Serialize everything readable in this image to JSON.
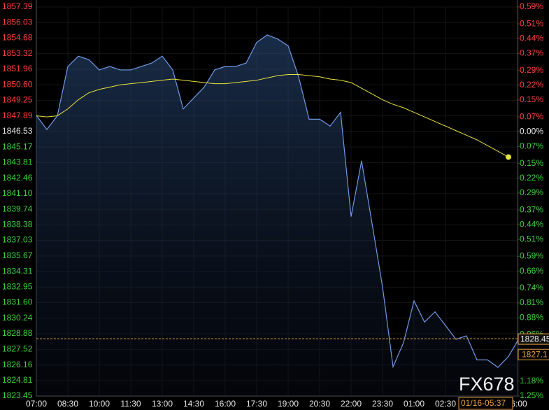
{
  "chart_data": {
    "type": "line",
    "categories": [
      "07:00",
      null,
      null,
      "08:30",
      null,
      null,
      "10:00",
      null,
      null,
      "11:30",
      null,
      null,
      "13:00",
      null,
      null,
      "14:30",
      null,
      null,
      "16:00",
      null,
      null,
      "17:30",
      null,
      null,
      "19:00",
      null,
      null,
      "20:30",
      null,
      null,
      "22:00",
      null,
      null,
      "23:30",
      null,
      null,
      "01:00",
      null,
      null,
      "02:30",
      null,
      null,
      null,
      null,
      null,
      null,
      "6:00"
    ],
    "series": [
      {
        "color": "#6f9ae8",
        "values": [
          1847.93,
          1846.7,
          1847.9,
          1852.2,
          1853.1,
          1852.8,
          1851.9,
          1852.2,
          1851.9,
          1851.9,
          1852.2,
          1852.5,
          1853.1,
          1851.9,
          1848.5,
          1849.45,
          1850.4,
          1851.9,
          1852.2,
          1852.2,
          1852.5,
          1854.3,
          1854.95,
          1854.6,
          1854.0,
          1851.3,
          1847.6,
          1847.6,
          1847.0,
          1848.2,
          1839.1,
          1843.96,
          1838.5,
          1832.97,
          1826.0,
          1828.1,
          1831.75,
          1829.9,
          1830.8,
          1829.6,
          1828.4,
          1828.7,
          1826.6,
          1826.6,
          1825.95,
          1826.9,
          1828.45
        ]
      },
      {
        "color": "#e6e23c",
        "values": [
          1847.9,
          1847.8,
          1847.9,
          1848.5,
          1849.3,
          1849.9,
          1850.2,
          1850.4,
          1850.6,
          1850.7,
          1850.8,
          1850.9,
          1851.0,
          1851.1,
          1851.0,
          1850.9,
          1850.8,
          1850.7,
          1850.7,
          1850.8,
          1850.9,
          1851.0,
          1851.2,
          1851.4,
          1851.5,
          1851.5,
          1851.4,
          1851.3,
          1851.1,
          1851.0,
          1850.8,
          1850.3,
          1849.8,
          1849.3,
          1848.9,
          1848.6,
          1848.2,
          1847.8,
          1847.4,
          1847.0,
          1846.6,
          1846.2,
          1845.8,
          1845.3,
          1844.8,
          1844.3,
          null
        ]
      }
    ],
    "ylim": [
      1823.45,
      1857.39
    ],
    "yticks": [
      1857.39,
      1856.03,
      1854.68,
      1853.32,
      1851.96,
      {
        "value": 1850.6,
        "label": "1850.60"
      },
      1849.25,
      1847.89,
      1846.53,
      1845.17,
      1843.81,
      1842.46,
      {
        "value": 1841.1,
        "label": "1841.10"
      },
      1839.74,
      1838.38,
      1837.03,
      1835.67,
      1834.31,
      1832.95,
      {
        "value": 1831.6,
        "label": "1831.60"
      },
      1830.24,
      1828.88,
      1827.52,
      1826.16,
      1824.81,
      1823.45
    ],
    "y2lim": [
      -1.25,
      0.59
    ],
    "y2ticks": [
      {
        "value": 0.59,
        "label": "0.59%"
      },
      {
        "value": 0.51,
        "label": "0.51%"
      },
      {
        "value": 0.44,
        "label": "0.44%"
      },
      {
        "value": 0.37,
        "label": "0.37%"
      },
      {
        "value": 0.29,
        "label": "0.29%"
      },
      {
        "value": 0.22,
        "label": "0.22%"
      },
      {
        "value": 0.15,
        "label": "0.15%"
      },
      {
        "value": 0.07,
        "label": "0.07%"
      },
      {
        "value": 0,
        "label": "0.00%"
      },
      {
        "value": -0.07,
        "label": "0.07%"
      },
      {
        "value": -0.15,
        "label": "0.15%"
      },
      {
        "value": -0.22,
        "label": "0.22%"
      },
      {
        "value": -0.29,
        "label": "0.29%"
      },
      {
        "value": -0.37,
        "label": "0.37%"
      },
      {
        "value": -0.44,
        "label": "0.44%"
      },
      {
        "value": -0.51,
        "label": "0.51%"
      },
      {
        "value": -0.59,
        "label": "0.59%"
      },
      {
        "value": -0.66,
        "label": "0.66%"
      },
      {
        "value": -0.74,
        "label": "0.74%"
      },
      {
        "value": -0.81,
        "label": "0.81%"
      },
      {
        "value": -0.88,
        "label": "0.88%"
      },
      {
        "value": -0.96,
        "label": "0.96%"
      },
      {
        "value": -1.18,
        "label": "1.18%"
      },
      {
        "value": -1.25,
        "label": "1.25%"
      }
    ],
    "current_price": 1828.45,
    "cursor_price": 1827.1,
    "cursor_time": "01/16-05:37",
    "watermark": "FX678",
    "grid": true
  }
}
